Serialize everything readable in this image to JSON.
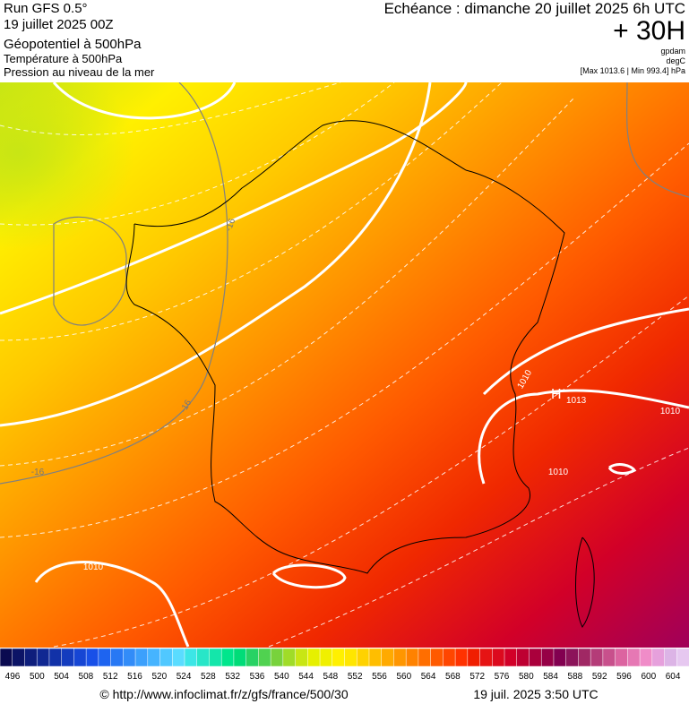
{
  "header": {
    "run": "Run GFS 0.5°",
    "date": "19 juillet 2025 00Z",
    "fields": [
      "Géopotentiel à 500hPa",
      "Température à 500hPa",
      "Pression au niveau de la mer"
    ],
    "echeance": "Echéance : dimanche 20 juillet 2025 6h UTC",
    "offset": "+ 30H",
    "units": [
      "gpdam",
      "degC",
      "[Max 1013.6 | Min 993.4] hPa"
    ]
  },
  "map": {
    "contour_labels": [
      "1010",
      "1010",
      "1010",
      "1010",
      "-16",
      "-16",
      "-16"
    ],
    "high": {
      "symbol": "H",
      "value": "1013"
    }
  },
  "legend": {
    "colors": [
      "#0a0a50",
      "#0c1466",
      "#0e1e7c",
      "#102892",
      "#1232a8",
      "#143cbe",
      "#1646d4",
      "#1850e8",
      "#1e64f0",
      "#2878f4",
      "#328cf8",
      "#3ca0fc",
      "#46b4ff",
      "#50c8ff",
      "#5adcff",
      "#3ce6e6",
      "#28e6c8",
      "#14e6aa",
      "#00e68c",
      "#00dc78",
      "#28d264",
      "#50d250",
      "#78d23c",
      "#a0dc28",
      "#c8e614",
      "#e6f000",
      "#f0f000",
      "#fff000",
      "#ffe600",
      "#ffd200",
      "#ffbe00",
      "#ffaa00",
      "#ff9600",
      "#ff8200",
      "#ff6e00",
      "#ff5a00",
      "#ff4600",
      "#ff3200",
      "#f01e00",
      "#e61414",
      "#dc0a1e",
      "#d20028",
      "#be0032",
      "#aa003c",
      "#960046",
      "#820050",
      "#8c145a",
      "#a02864",
      "#b43c78",
      "#c8508c",
      "#dc64a0",
      "#e678b4",
      "#f08cc8",
      "#e6a0dc",
      "#dcb4e6",
      "#e6c8f0"
    ],
    "labels": [
      496,
      500,
      504,
      508,
      512,
      516,
      520,
      524,
      528,
      532,
      536,
      540,
      544,
      548,
      552,
      556,
      560,
      564,
      568,
      572,
      576,
      580,
      584,
      588,
      592,
      596,
      600,
      604
    ]
  },
  "footer": {
    "credit": "© http://www.infoclimat.fr/z/gfs/france/500/30",
    "timestamp": "19 juil. 2025  3:50 UTC"
  }
}
